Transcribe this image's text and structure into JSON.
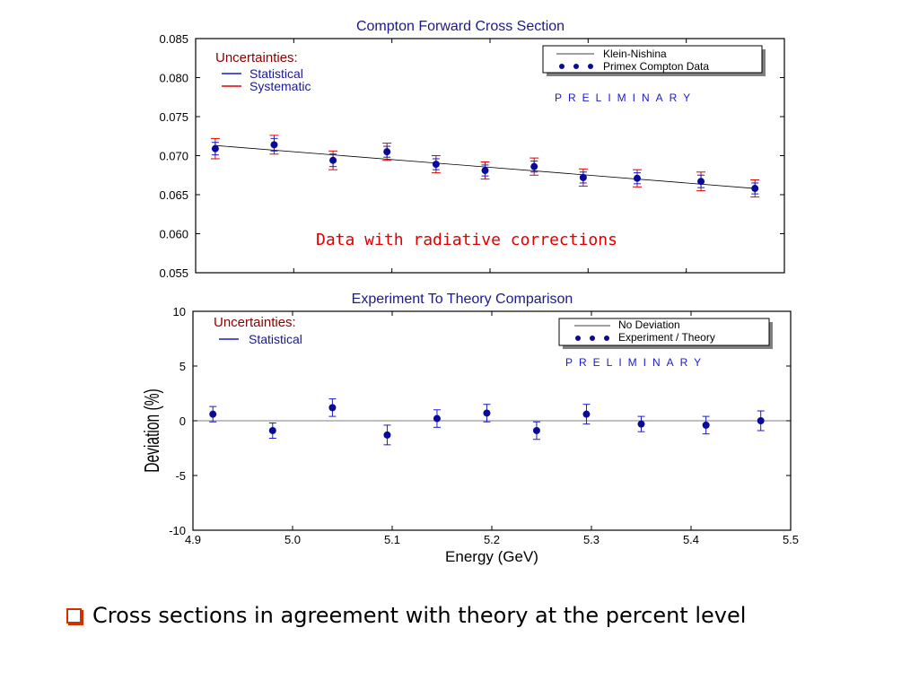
{
  "colors": {
    "title": "#1a1a8c",
    "statistical": "#1a1acc",
    "systematic": "#e00000",
    "marker": "#0a0a99",
    "uncertainty_title": "#8b0000",
    "annotation": "#e00000",
    "theory_line": "#000000",
    "bullet": "#cc3300"
  },
  "chart_data": [
    {
      "type": "scatter",
      "title": "Compton Forward Cross Section",
      "xlabel": "",
      "ylabel": "",
      "xlim": [
        4.9,
        5.5
      ],
      "ylim": [
        0.055,
        0.085
      ],
      "yticks": [
        "0.055",
        "0.060",
        "0.065",
        "0.070",
        "0.075",
        "0.080",
        "0.085"
      ],
      "uncertainties": {
        "title": "Uncertainties:",
        "items": [
          "Statistical",
          "Systematic"
        ]
      },
      "legend": {
        "placement": "top-right",
        "entries": [
          "Klein-Nishina",
          "Primex Compton Data"
        ]
      },
      "watermark": "PRELIMINARY",
      "annotation": "Data with radiative corrections",
      "series": [
        {
          "name": "Klein-Nishina",
          "kind": "line",
          "x": [
            4.92,
            5.47
          ],
          "y": [
            0.0713,
            0.0658
          ]
        },
        {
          "name": "Primex Compton Data",
          "kind": "points",
          "x": [
            4.92,
            4.98,
            5.04,
            5.095,
            5.145,
            5.195,
            5.245,
            5.295,
            5.35,
            5.415,
            5.47
          ],
          "y": [
            0.0709,
            0.0714,
            0.0694,
            0.0705,
            0.0689,
            0.0681,
            0.0686,
            0.0672,
            0.0671,
            0.0667,
            0.0658
          ],
          "stat_err": [
            0.0008,
            0.0008,
            0.0008,
            0.0007,
            0.0007,
            0.0007,
            0.0007,
            0.0007,
            0.0007,
            0.0008,
            0.0007
          ],
          "sys_err": [
            0.0013,
            0.0012,
            0.0012,
            0.0011,
            0.0011,
            0.0011,
            0.0011,
            0.0011,
            0.0011,
            0.0012,
            0.0011
          ]
        }
      ]
    },
    {
      "type": "scatter",
      "title": "Experiment To Theory Comparison",
      "xlabel": "Energy (GeV)",
      "ylabel": "Deviation (%)",
      "xlim": [
        4.9,
        5.5
      ],
      "ylim": [
        -10,
        10
      ],
      "xticks": [
        "4.9",
        "5.0",
        "5.1",
        "5.2",
        "5.3",
        "5.4",
        "5.5"
      ],
      "yticks": [
        "-10",
        "-5",
        "0",
        "5",
        "10"
      ],
      "uncertainties": {
        "title": "Uncertainties:",
        "items": [
          "Statistical"
        ]
      },
      "legend": {
        "placement": "top-right",
        "entries": [
          "No Deviation",
          "Experiment / Theory"
        ]
      },
      "watermark": "PRELIMINARY",
      "series": [
        {
          "name": "No Deviation",
          "kind": "line",
          "x": [
            4.9,
            5.5
          ],
          "y": [
            0,
            0
          ]
        },
        {
          "name": "Experiment / Theory",
          "kind": "points",
          "x": [
            4.92,
            4.98,
            5.04,
            5.095,
            5.145,
            5.195,
            5.245,
            5.295,
            5.35,
            5.415,
            5.47
          ],
          "y": [
            0.6,
            -0.9,
            1.2,
            -1.3,
            0.2,
            0.7,
            -0.9,
            0.6,
            -0.3,
            -0.4,
            0.0
          ],
          "stat_err": [
            0.7,
            0.7,
            0.8,
            0.9,
            0.8,
            0.8,
            0.8,
            0.9,
            0.7,
            0.8,
            0.9
          ]
        }
      ]
    }
  ],
  "bullet_text": "Cross sections in agreement with theory at the percent level"
}
